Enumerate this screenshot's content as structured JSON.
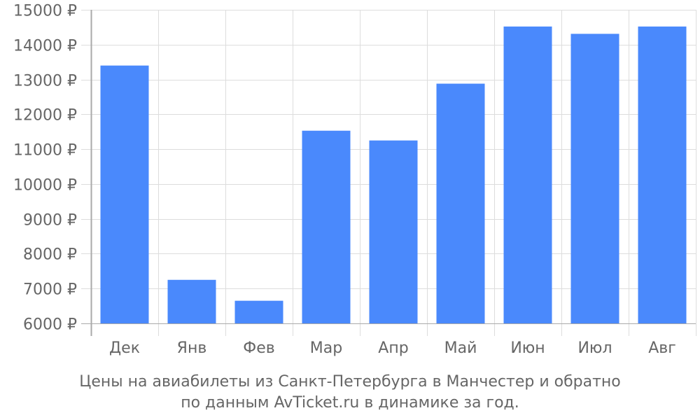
{
  "chart_data": {
    "type": "bar",
    "categories": [
      "Дек",
      "Янв",
      "Фев",
      "Мар",
      "Апр",
      "Май",
      "Июн",
      "Июл",
      "Авг"
    ],
    "values": [
      13400,
      7250,
      6650,
      11530,
      11250,
      12880,
      14520,
      14310,
      14520
    ],
    "ylim": [
      6000,
      15000
    ],
    "y_ticks": [
      6000,
      7000,
      8000,
      9000,
      10000,
      11000,
      12000,
      13000,
      14000,
      15000
    ],
    "y_tick_suffix": " ₽",
    "grid": true,
    "bar_color": "#4a89fc",
    "grid_color": "#dddddd",
    "axis_color": "#aaaaaa",
    "text_color": "#666666"
  },
  "caption": {
    "line1": "Цены на авиабилеты из Санкт-Петербурга в Манчестер и обратно",
    "line2": "по данным AvTicket.ru в динамике за год."
  }
}
